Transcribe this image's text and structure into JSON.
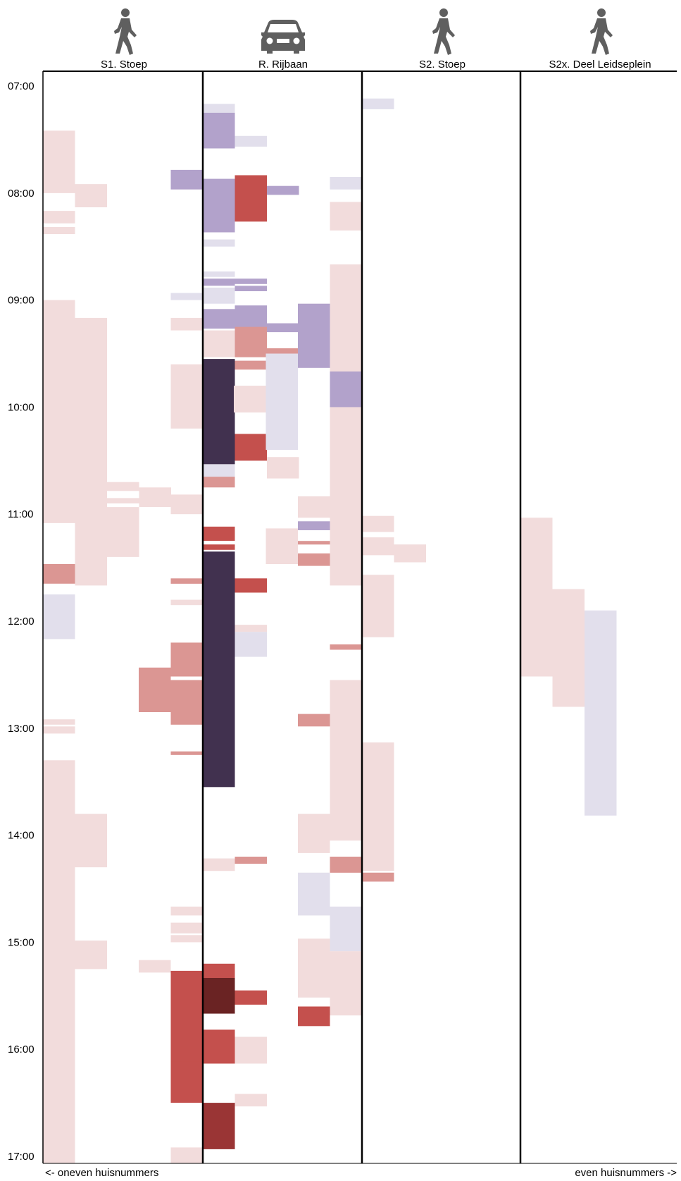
{
  "chart_data": {
    "type": "timeline-blocks",
    "columns": [
      {
        "label": "S1. Stoep",
        "icon": "pedestrian-icon"
      },
      {
        "label": "R. Rijbaan",
        "icon": "car-icon"
      },
      {
        "label": "S2. Stoep",
        "icon": "pedestrian-icon"
      },
      {
        "label": "S2x. Deel Leidseplein",
        "icon": "pedestrian-icon"
      }
    ],
    "y_ticks": [
      "07:00",
      "08:00",
      "09:00",
      "10:00",
      "11:00",
      "12:00",
      "13:00",
      "14:00",
      "15:00",
      "16:00",
      "17:00"
    ],
    "y_range": [
      "07:00",
      "17:05"
    ],
    "footer": {
      "left": "<- oneven huisnummers",
      "right": "even huisnummers ->"
    },
    "colors": {
      "pink": "#f2dcdc",
      "salmon": "#db9693",
      "red": "#c4504d",
      "darkred": "#9a3535",
      "maroon": "#6a2323",
      "lavender": "#e2dfec",
      "lilac": "#b2a2cb",
      "navy": "#41314f"
    },
    "blocks": [
      {
        "lane": 0,
        "slot": 0,
        "start": "07:25",
        "end": "08:00",
        "color": "pink"
      },
      {
        "lane": 0,
        "slot": 1,
        "start": "07:55",
        "end": "08:08",
        "color": "pink"
      },
      {
        "lane": 0,
        "slot": 0,
        "start": "08:10",
        "end": "08:17",
        "color": "pink"
      },
      {
        "lane": 0,
        "slot": 0,
        "start": "08:19",
        "end": "08:23",
        "color": "pink"
      },
      {
        "lane": 0,
        "slot": 0,
        "start": "09:00",
        "end": "11:05",
        "color": "pink"
      },
      {
        "lane": 0,
        "slot": 1,
        "start": "09:10",
        "end": "11:40",
        "color": "pink"
      },
      {
        "lane": 0,
        "slot": 2,
        "start": "10:42",
        "end": "10:47",
        "color": "pink"
      },
      {
        "lane": 0,
        "slot": 2,
        "start": "10:51",
        "end": "10:54",
        "color": "pink"
      },
      {
        "lane": 0,
        "slot": 3,
        "start": "10:45",
        "end": "10:56",
        "color": "pink"
      },
      {
        "lane": 0,
        "slot": 2,
        "start": "10:56",
        "end": "11:24",
        "color": "pink"
      },
      {
        "lane": 0,
        "slot": 0,
        "start": "11:28",
        "end": "11:39",
        "color": "salmon"
      },
      {
        "lane": 0,
        "slot": 0,
        "start": "11:45",
        "end": "12:10",
        "color": "lavender"
      },
      {
        "lane": 0,
        "slot": 0,
        "start": "12:55",
        "end": "12:58",
        "color": "pink"
      },
      {
        "lane": 0,
        "slot": 0,
        "start": "12:59",
        "end": "13:03",
        "color": "pink"
      },
      {
        "lane": 0,
        "slot": 0,
        "start": "13:18",
        "end": "17:04",
        "color": "pink"
      },
      {
        "lane": 0,
        "slot": 1,
        "start": "13:48",
        "end": "14:18",
        "color": "pink"
      },
      {
        "lane": 0,
        "slot": 1,
        "start": "14:59",
        "end": "15:15",
        "color": "pink"
      },
      {
        "lane": 1,
        "slot": 0,
        "start": "07:10",
        "end": "07:15",
        "color": "lavender"
      },
      {
        "lane": 1,
        "slot": 0,
        "start": "07:15",
        "end": "07:35",
        "color": "lilac"
      },
      {
        "lane": 1,
        "slot": 1,
        "start": "07:28",
        "end": "07:34",
        "color": "lavender"
      },
      {
        "lane": 1,
        "slot": -1,
        "start": "07:47",
        "end": "07:58",
        "color": "lilac"
      },
      {
        "lane": 1,
        "slot": 0,
        "start": "07:52",
        "end": "08:22",
        "color": "lilac"
      },
      {
        "lane": 1,
        "slot": 1,
        "start": "07:50",
        "end": "08:16",
        "color": "red"
      },
      {
        "lane": 1,
        "slot": 2,
        "start": "07:56",
        "end": "08:01",
        "color": "lilac"
      },
      {
        "lane": 1,
        "slot": 0,
        "start": "08:26",
        "end": "08:30",
        "color": "lavender"
      },
      {
        "lane": 1,
        "slot": 0,
        "start": "08:44",
        "end": "08:47",
        "color": "lavender"
      },
      {
        "lane": 1,
        "slot": 0,
        "start": "08:48",
        "end": "08:52",
        "color": "lilac"
      },
      {
        "lane": 1,
        "slot": 1,
        "start": "08:48",
        "end": "08:51",
        "color": "lilac"
      },
      {
        "lane": 1,
        "slot": 1,
        "start": "08:52",
        "end": "08:55",
        "color": "lilac"
      },
      {
        "lane": 1,
        "slot": 0,
        "start": "08:53",
        "end": "09:02",
        "color": "lavender"
      },
      {
        "lane": 1,
        "slot": -1,
        "start": "08:56",
        "end": "09:00",
        "color": "lavender"
      },
      {
        "lane": 1,
        "slot": 0,
        "start": "09:05",
        "end": "09:16",
        "color": "lilac"
      },
      {
        "lane": 1,
        "slot": 1,
        "start": "09:03",
        "end": "09:16",
        "color": "lilac"
      },
      {
        "lane": 1,
        "slot": 2,
        "start": "09:13",
        "end": "09:18",
        "color": "lilac"
      },
      {
        "lane": 1,
        "slot": -1,
        "start": "09:10",
        "end": "09:17",
        "color": "pink"
      },
      {
        "lane": 1,
        "slot": 1,
        "start": "09:15",
        "end": "09:32",
        "color": "salmon"
      },
      {
        "lane": 1,
        "slot": 0,
        "start": "09:17",
        "end": "09:32",
        "color": "pink"
      },
      {
        "lane": 1,
        "slot": 1,
        "start": "09:34",
        "end": "09:39",
        "color": "salmon"
      },
      {
        "lane": 1,
        "slot": 0,
        "start": "09:33",
        "end": "10:32",
        "color": "navy"
      },
      {
        "lane": 1,
        "slot": -1,
        "start": "09:36",
        "end": "10:12",
        "color": "pink"
      },
      {
        "lane": 1,
        "slot": 1,
        "start": "10:15",
        "end": "10:30",
        "color": "red"
      },
      {
        "lane": 1,
        "slot": 2,
        "start": "10:28",
        "end": "10:40",
        "color": "pink"
      },
      {
        "lane": 1,
        "slot": 0,
        "start": "10:32",
        "end": "10:39",
        "color": "lavender"
      },
      {
        "lane": 1,
        "slot": 0,
        "start": "10:39",
        "end": "10:45",
        "color": "salmon"
      },
      {
        "lane": 1,
        "slot": -1,
        "start": "10:49",
        "end": "11:00",
        "color": "pink"
      },
      {
        "lane": 1,
        "slot": 0,
        "start": "11:07",
        "end": "11:15",
        "color": "red"
      },
      {
        "lane": 1,
        "slot": 0,
        "start": "11:17",
        "end": "11:20",
        "color": "red"
      },
      {
        "lane": 1,
        "slot": 0,
        "start": "11:21",
        "end": "13:33",
        "color": "navy"
      },
      {
        "lane": 1,
        "slot": -1,
        "start": "11:36",
        "end": "11:39",
        "color": "salmon"
      },
      {
        "lane": 1,
        "slot": 1,
        "start": "11:36",
        "end": "11:44",
        "color": "red"
      },
      {
        "lane": 1,
        "slot": -1,
        "start": "11:48",
        "end": "11:51",
        "color": "pink"
      },
      {
        "lane": 1,
        "slot": 1,
        "start": "12:02",
        "end": "12:06",
        "color": "pink"
      },
      {
        "lane": 1,
        "slot": 1,
        "start": "12:06",
        "end": "12:20",
        "color": "lavender"
      },
      {
        "lane": 1,
        "slot": -1,
        "start": "12:12",
        "end": "12:31",
        "color": "salmon"
      },
      {
        "lane": 1,
        "slot": -2,
        "start": "12:26",
        "end": "12:51",
        "color": "salmon"
      },
      {
        "lane": 1,
        "slot": -1,
        "start": "12:33",
        "end": "12:58",
        "color": "salmon"
      },
      {
        "lane": 1,
        "slot": -1,
        "start": "13:13",
        "end": "13:15",
        "color": "salmon"
      },
      {
        "lane": 1,
        "slot": 1,
        "start": "14:12",
        "end": "14:16",
        "color": "salmon"
      },
      {
        "lane": 1,
        "slot": 0,
        "start": "14:13",
        "end": "14:20",
        "color": "pink"
      },
      {
        "lane": 1,
        "slot": -1,
        "start": "14:40",
        "end": "14:45",
        "color": "pink"
      },
      {
        "lane": 1,
        "slot": -1,
        "start": "14:49",
        "end": "14:55",
        "color": "pink"
      },
      {
        "lane": 1,
        "slot": -1,
        "start": "14:56",
        "end": "15:00",
        "color": "pink"
      },
      {
        "lane": 1,
        "slot": -2,
        "start": "15:10",
        "end": "15:17",
        "color": "pink"
      },
      {
        "lane": 1,
        "slot": -1,
        "start": "15:16",
        "end": "16:09",
        "color": "red"
      },
      {
        "lane": 1,
        "slot": 0,
        "start": "15:12",
        "end": "15:22",
        "color": "red"
      },
      {
        "lane": 1,
        "slot": 0,
        "start": "15:20",
        "end": "15:40",
        "color": "maroon"
      },
      {
        "lane": 1,
        "slot": 1,
        "start": "15:27",
        "end": "15:35",
        "color": "red"
      },
      {
        "lane": 1,
        "slot": 0,
        "start": "15:49",
        "end": "16:08",
        "color": "red"
      },
      {
        "lane": 1,
        "slot": 1,
        "start": "15:53",
        "end": "16:08",
        "color": "pink"
      },
      {
        "lane": 1,
        "slot": -1,
        "start": "16:07",
        "end": "16:30",
        "color": "red"
      },
      {
        "lane": 1,
        "slot": 1,
        "start": "16:25",
        "end": "16:32",
        "color": "pink"
      },
      {
        "lane": 1,
        "slot": 0,
        "start": "16:30",
        "end": "16:56",
        "color": "darkred"
      },
      {
        "lane": 1,
        "slot": -1,
        "start": "16:55",
        "end": "16:59",
        "color": "pink"
      },
      {
        "lane": 1,
        "slot": -1,
        "start": "16:59",
        "end": "17:04",
        "color": "pink"
      },
      {
        "lane": 2,
        "slot": 0,
        "start": "07:07",
        "end": "07:13",
        "color": "lavender"
      },
      {
        "lane": 2,
        "slot": -1,
        "start": "07:51",
        "end": "07:58",
        "color": "lavender"
      },
      {
        "lane": 2,
        "slot": -1,
        "start": "08:05",
        "end": "08:21",
        "color": "pink"
      },
      {
        "lane": 2,
        "slot": -1,
        "start": "08:40",
        "end": "11:40",
        "color": "pink"
      },
      {
        "lane": 2,
        "slot": -2,
        "start": "09:02",
        "end": "09:38",
        "color": "lilac"
      },
      {
        "lane": 2,
        "slot": -3,
        "start": "09:27",
        "end": "09:30",
        "color": "salmon"
      },
      {
        "lane": 2,
        "slot": -3,
        "start": "09:30",
        "end": "10:24",
        "color": "lavender"
      },
      {
        "lane": 2,
        "slot": -4,
        "start": "09:48",
        "end": "10:03",
        "color": "pink"
      },
      {
        "lane": 2,
        "slot": -1,
        "start": "09:40",
        "end": "10:00",
        "color": "lilac"
      },
      {
        "lane": 2,
        "slot": -2,
        "start": "10:50",
        "end": "11:02",
        "color": "pink"
      },
      {
        "lane": 2,
        "slot": 0,
        "start": "11:01",
        "end": "11:10",
        "color": "pink"
      },
      {
        "lane": 2,
        "slot": -2,
        "start": "11:04",
        "end": "11:09",
        "color": "lilac"
      },
      {
        "lane": 2,
        "slot": -3,
        "start": "11:08",
        "end": "11:28",
        "color": "pink"
      },
      {
        "lane": 2,
        "slot": -2,
        "start": "11:15",
        "end": "11:17",
        "color": "salmon"
      },
      {
        "lane": 2,
        "slot": 0,
        "start": "11:13",
        "end": "11:23",
        "color": "pink"
      },
      {
        "lane": 2,
        "slot": 1,
        "start": "11:17",
        "end": "11:27",
        "color": "pink"
      },
      {
        "lane": 2,
        "slot": -2,
        "start": "11:22",
        "end": "11:29",
        "color": "salmon"
      },
      {
        "lane": 2,
        "slot": 0,
        "start": "11:34",
        "end": "12:09",
        "color": "pink"
      },
      {
        "lane": 2,
        "slot": -1,
        "start": "12:13",
        "end": "12:16",
        "color": "salmon"
      },
      {
        "lane": 2,
        "slot": -1,
        "start": "12:33",
        "end": "14:03",
        "color": "pink"
      },
      {
        "lane": 2,
        "slot": -2,
        "start": "12:52",
        "end": "12:59",
        "color": "salmon"
      },
      {
        "lane": 2,
        "slot": 0,
        "start": "13:08",
        "end": "14:20",
        "color": "pink"
      },
      {
        "lane": 2,
        "slot": -2,
        "start": "13:48",
        "end": "14:10",
        "color": "pink"
      },
      {
        "lane": 2,
        "slot": -1,
        "start": "14:12",
        "end": "14:21",
        "color": "salmon"
      },
      {
        "lane": 2,
        "slot": 0,
        "start": "14:21",
        "end": "14:26",
        "color": "salmon"
      },
      {
        "lane": 2,
        "slot": -2,
        "start": "14:21",
        "end": "14:45",
        "color": "lavender"
      },
      {
        "lane": 2,
        "slot": -1,
        "start": "14:40",
        "end": "15:05",
        "color": "lavender"
      },
      {
        "lane": 2,
        "slot": -2,
        "start": "14:58",
        "end": "15:31",
        "color": "pink"
      },
      {
        "lane": 2,
        "slot": -1,
        "start": "15:05",
        "end": "15:41",
        "color": "pink"
      },
      {
        "lane": 2,
        "slot": -2,
        "start": "15:36",
        "end": "15:47",
        "color": "red"
      },
      {
        "lane": 3,
        "slot": 0,
        "start": "11:02",
        "end": "12:31",
        "color": "pink"
      },
      {
        "lane": 3,
        "slot": 1,
        "start": "11:42",
        "end": "12:48",
        "color": "pink"
      },
      {
        "lane": 3,
        "slot": 2,
        "start": "11:54",
        "end": "13:49",
        "color": "lavender"
      }
    ]
  }
}
